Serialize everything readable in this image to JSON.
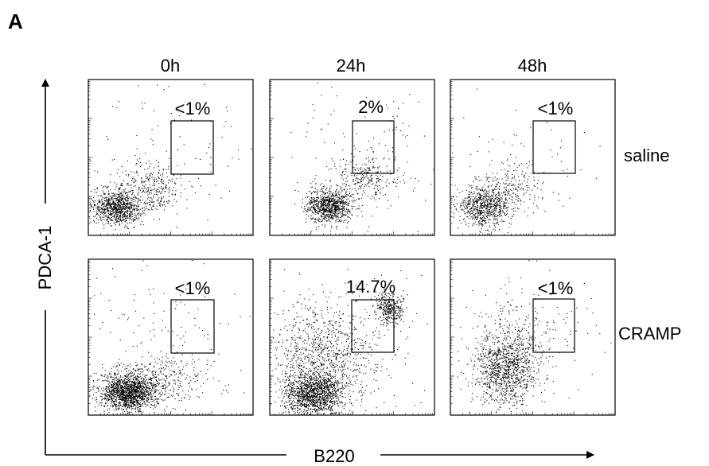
{
  "chart_data": {
    "type": "scatter",
    "panel_label": "A",
    "columns": [
      "0h",
      "24h",
      "48h"
    ],
    "rows": [
      "saline",
      "CRAMP"
    ],
    "xlabel": "B220",
    "ylabel": "PDCA-1",
    "axis_scale": "log",
    "grid": false,
    "legend": "none",
    "panels": [
      {
        "row": "saline",
        "column": "0h",
        "gate_percent": "<1%",
        "clusters": [
          {
            "cx": 0.17,
            "cy": 0.82,
            "sx": 0.075,
            "sy": 0.055,
            "n": 900
          },
          {
            "cx": 0.38,
            "cy": 0.7,
            "sx": 0.11,
            "sy": 0.08,
            "n": 350
          },
          {
            "cx": 0.5,
            "cy": 0.5,
            "sx": 0.35,
            "sy": 0.3,
            "n": 120
          }
        ]
      },
      {
        "row": "saline",
        "column": "24h",
        "gate_percent": "2%",
        "clusters": [
          {
            "cx": 0.36,
            "cy": 0.81,
            "sx": 0.07,
            "sy": 0.055,
            "n": 900
          },
          {
            "cx": 0.58,
            "cy": 0.62,
            "sx": 0.1,
            "sy": 0.07,
            "n": 260
          },
          {
            "cx": 0.78,
            "cy": 0.3,
            "sx": 0.07,
            "sy": 0.08,
            "n": 20
          },
          {
            "cx": 0.5,
            "cy": 0.5,
            "sx": 0.35,
            "sy": 0.3,
            "n": 120
          }
        ]
      },
      {
        "row": "saline",
        "column": "48h",
        "gate_percent": "<1%",
        "clusters": [
          {
            "cx": 0.2,
            "cy": 0.81,
            "sx": 0.08,
            "sy": 0.06,
            "n": 700
          },
          {
            "cx": 0.36,
            "cy": 0.7,
            "sx": 0.1,
            "sy": 0.09,
            "n": 250
          },
          {
            "cx": 0.5,
            "cy": 0.5,
            "sx": 0.35,
            "sy": 0.3,
            "n": 80
          }
        ]
      },
      {
        "row": "CRAMP",
        "column": "0h",
        "gate_percent": "<1%",
        "clusters": [
          {
            "cx": 0.24,
            "cy": 0.85,
            "sx": 0.08,
            "sy": 0.06,
            "n": 1500
          },
          {
            "cx": 0.42,
            "cy": 0.78,
            "sx": 0.14,
            "sy": 0.08,
            "n": 350
          },
          {
            "cx": 0.5,
            "cy": 0.5,
            "sx": 0.35,
            "sy": 0.3,
            "n": 150
          }
        ]
      },
      {
        "row": "CRAMP",
        "column": "24h",
        "gate_percent": "14.7%",
        "clusters": [
          {
            "cx": 0.27,
            "cy": 0.86,
            "sx": 0.09,
            "sy": 0.07,
            "n": 1300
          },
          {
            "cx": 0.33,
            "cy": 0.62,
            "sx": 0.16,
            "sy": 0.16,
            "n": 900
          },
          {
            "cx": 0.72,
            "cy": 0.31,
            "sx": 0.045,
            "sy": 0.05,
            "n": 320
          },
          {
            "cx": 0.5,
            "cy": 0.5,
            "sx": 0.35,
            "sy": 0.3,
            "n": 200
          }
        ]
      },
      {
        "row": "CRAMP",
        "column": "48h",
        "gate_percent": "<1%",
        "clusters": [
          {
            "cx": 0.33,
            "cy": 0.72,
            "sx": 0.09,
            "sy": 0.11,
            "n": 900
          },
          {
            "cx": 0.4,
            "cy": 0.55,
            "sx": 0.12,
            "sy": 0.14,
            "n": 350
          },
          {
            "cx": 0.5,
            "cy": 0.5,
            "sx": 0.35,
            "sy": 0.3,
            "n": 120
          }
        ]
      }
    ]
  }
}
